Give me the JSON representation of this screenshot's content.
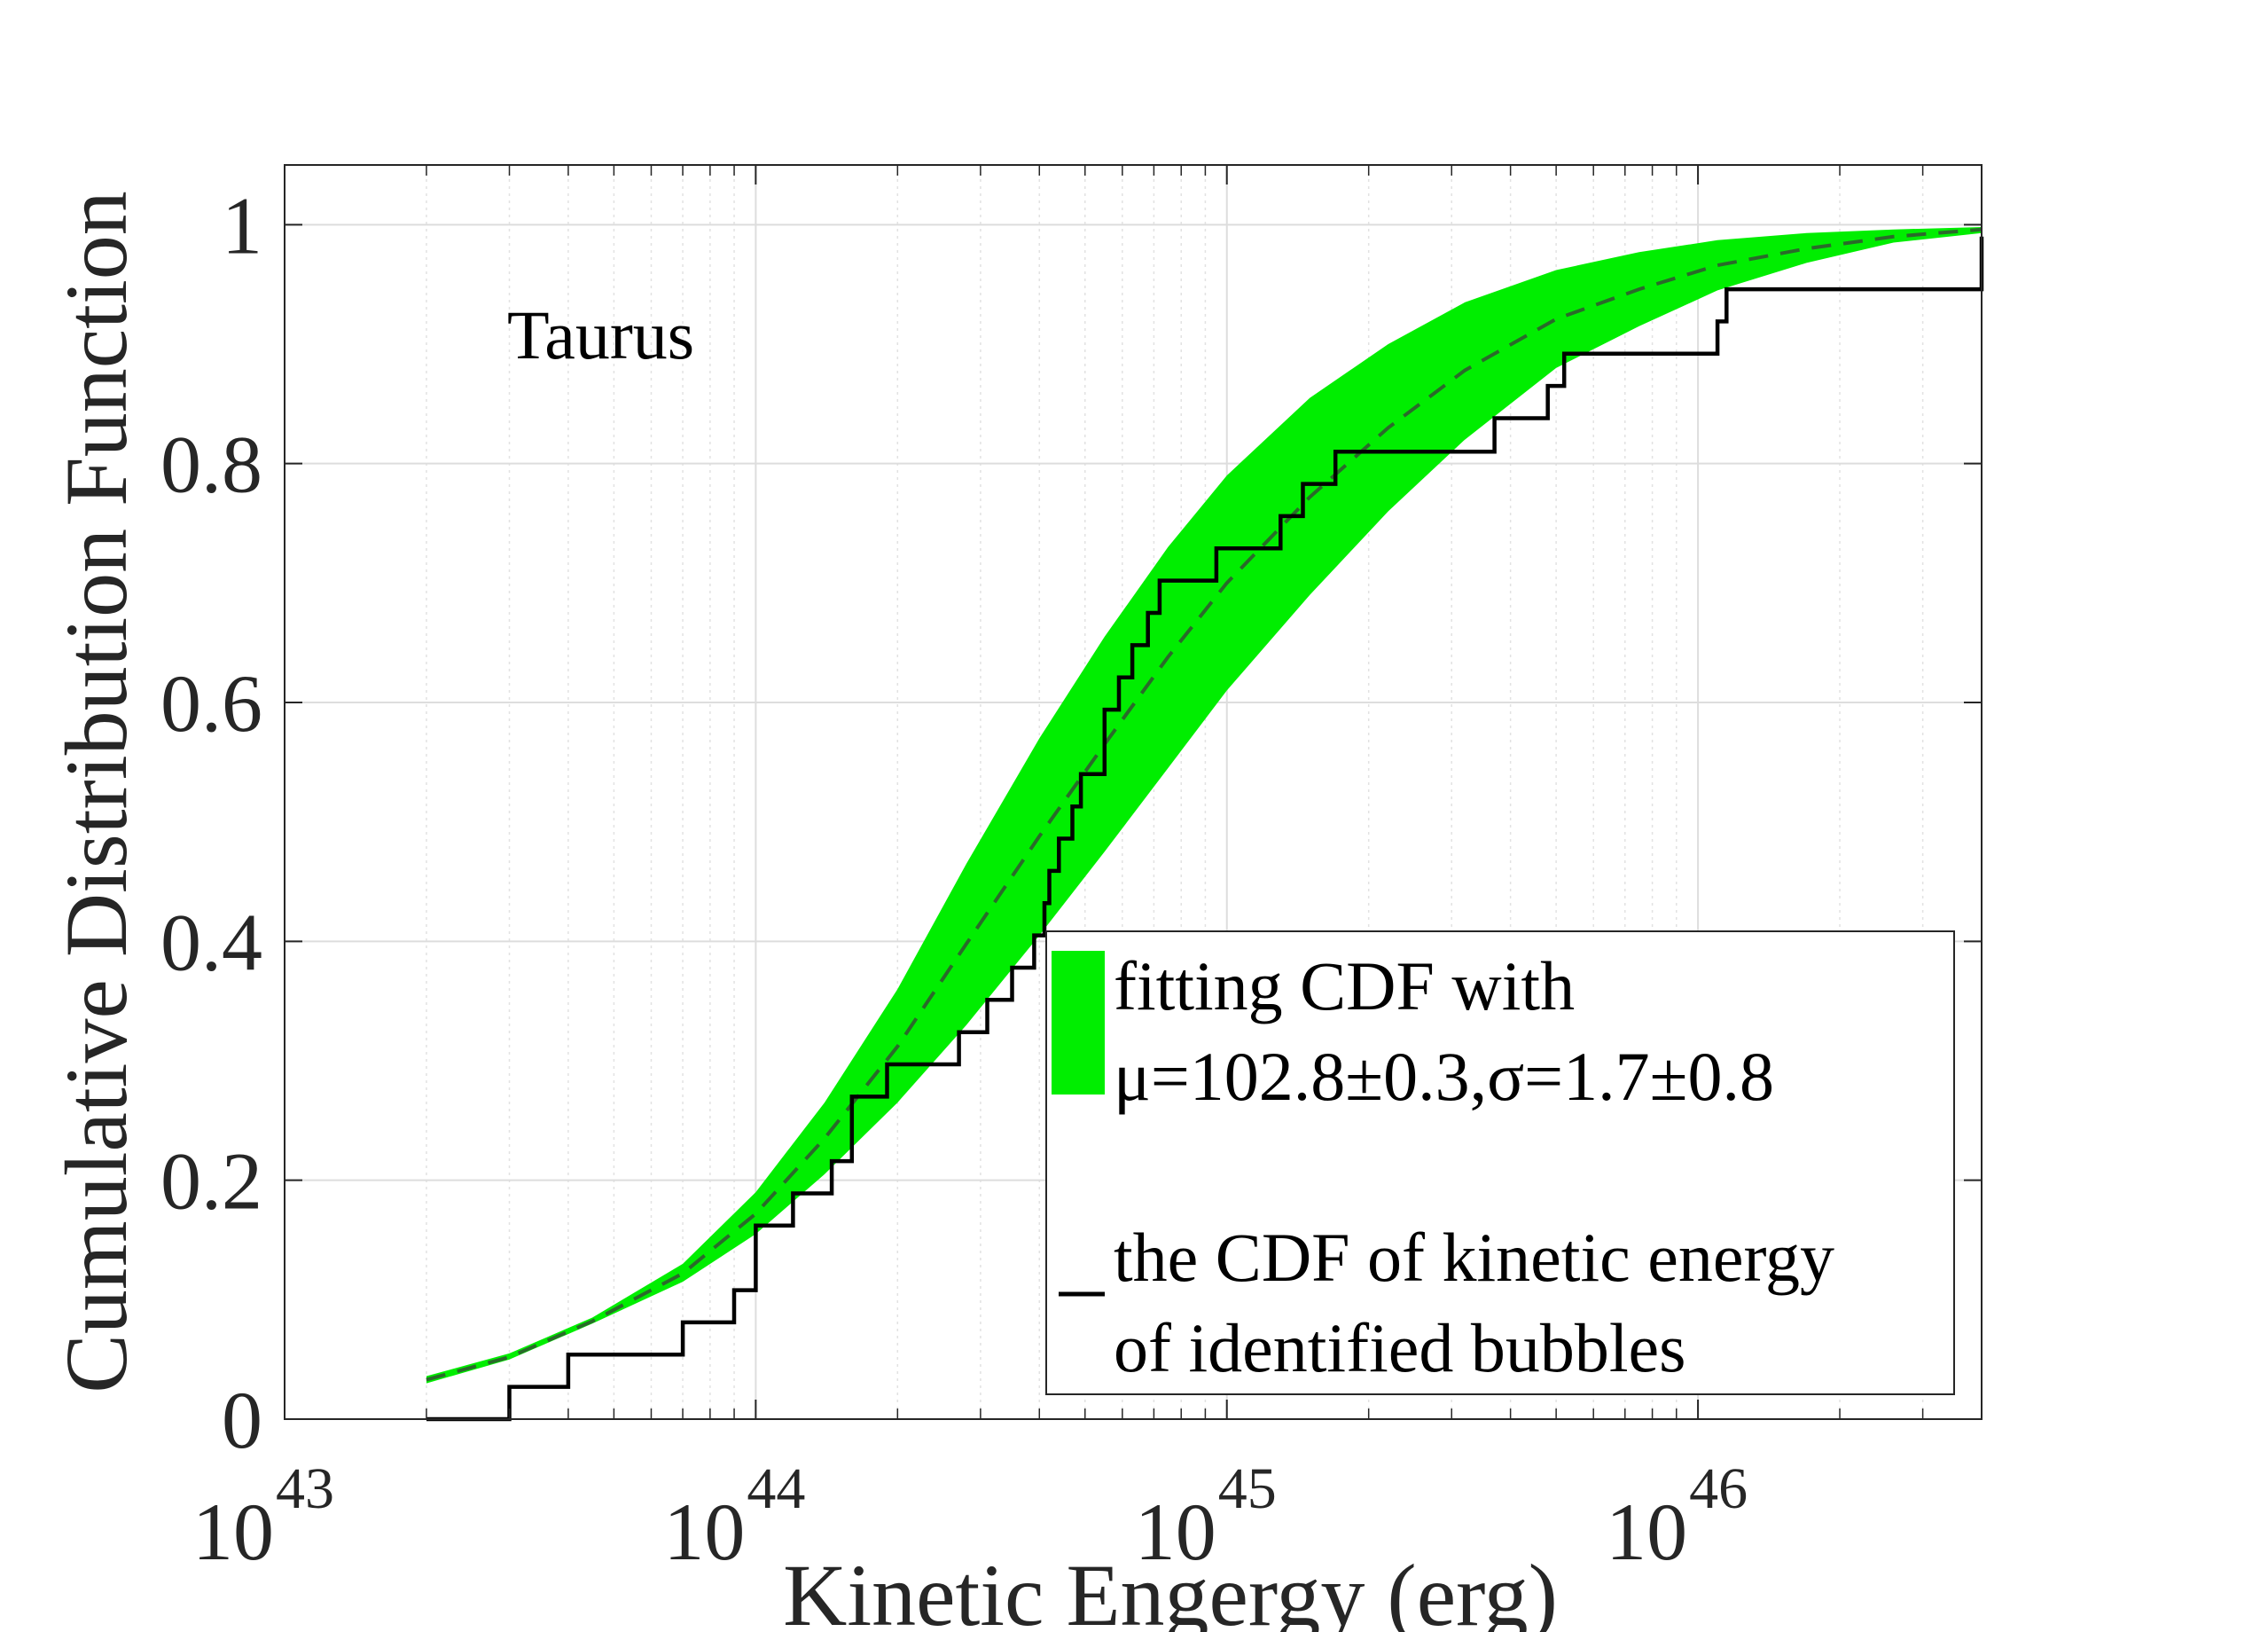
{
  "chart_data": {
    "type": "line",
    "title": "",
    "annotation": "Taurus",
    "xlabel": "Kinetic Engergy (erg)",
    "ylabel": "Cumulative Distribution Function",
    "xscale": "log",
    "xlim": [
      1e+43,
      4e+46
    ],
    "ylim": [
      0,
      1.05
    ],
    "xticks": [
      {
        "value": 1e+43,
        "base": "10",
        "exp": "43"
      },
      {
        "value": 1e+44,
        "base": "10",
        "exp": "44"
      },
      {
        "value": 1e+45,
        "base": "10",
        "exp": "45"
      },
      {
        "value": 1e+46,
        "base": "10",
        "exp": "46"
      }
    ],
    "yticks": [
      {
        "value": 0,
        "label": "0"
      },
      {
        "value": 0.2,
        "label": "0.2"
      },
      {
        "value": 0.4,
        "label": "0.4"
      },
      {
        "value": 0.6,
        "label": "0.6"
      },
      {
        "value": 0.8,
        "label": "0.8"
      },
      {
        "value": 1.0,
        "label": "1"
      }
    ],
    "grid": true,
    "legend_position": "bottom-right",
    "legend": [
      {
        "label_line1": "fitting CDF with",
        "label_line2": "μ=102.8±0.3,σ=1.7±0.8"
      },
      {
        "label_line1": "the CDF of kinetic energy",
        "label_line2": "of identified bubbles"
      }
    ],
    "series": [
      {
        "name": "fitting CDF band",
        "kind": "band",
        "color": "#00ee00",
        "x": [
          2e+43,
          3e+43,
          4.5e+43,
          7e+43,
          1e+44,
          1.4e+44,
          2e+44,
          2.8e+44,
          4e+44,
          5.5e+44,
          7.5e+44,
          1e+45,
          1.5e+45,
          2.2e+45,
          3.2e+45,
          5e+45,
          7.5e+45,
          1.1e+46,
          1.7e+46,
          2.6e+46,
          4e+46
        ],
        "lower": [
          0.03,
          0.05,
          0.08,
          0.115,
          0.155,
          0.205,
          0.265,
          0.33,
          0.405,
          0.475,
          0.545,
          0.61,
          0.69,
          0.76,
          0.82,
          0.88,
          0.915,
          0.945,
          0.968,
          0.985,
          0.993
        ],
        "upper": [
          0.036,
          0.055,
          0.085,
          0.13,
          0.19,
          0.265,
          0.36,
          0.465,
          0.57,
          0.655,
          0.73,
          0.79,
          0.855,
          0.9,
          0.935,
          0.962,
          0.977,
          0.987,
          0.993,
          0.996,
          0.998
        ]
      },
      {
        "name": "fitted CDF median",
        "kind": "dashed",
        "color": "#2a6a2a",
        "x": [
          2e+43,
          3e+43,
          4.5e+43,
          7e+43,
          1e+44,
          1.4e+44,
          2e+44,
          2.8e+44,
          4e+44,
          5.5e+44,
          7.5e+44,
          1e+45,
          1.5e+45,
          2.2e+45,
          3.2e+45,
          5e+45,
          7.5e+45,
          1.1e+46,
          1.7e+46,
          2.6e+46,
          4e+46
        ],
        "y": [
          0.033,
          0.052,
          0.082,
          0.122,
          0.172,
          0.235,
          0.312,
          0.398,
          0.488,
          0.565,
          0.638,
          0.7,
          0.772,
          0.83,
          0.878,
          0.921,
          0.946,
          0.966,
          0.98,
          0.99,
          0.996
        ]
      },
      {
        "name": "empirical CDF",
        "kind": "step",
        "color": "#000000",
        "x": [
          2e+43,
          3e+43,
          4e+43,
          7e+43,
          9e+43,
          1e+44,
          1.2e+44,
          1.45e+44,
          1.6e+44,
          1.9e+44,
          2.7e+44,
          3.1e+44,
          3.5e+44,
          3.9e+44,
          4.1e+44,
          4.2e+44,
          4.4e+44,
          4.7e+44,
          4.9e+44,
          5.5e+44,
          5.9e+44,
          6.3e+44,
          6.8e+44,
          7.2e+44,
          9e+44,
          9.5e+44,
          1.3e+45,
          1.45e+45,
          1.7e+45,
          3.7e+45,
          4.8e+45,
          5.2e+45,
          1.1e+46,
          1.15e+46,
          4e+46
        ],
        "y": [
          0.0,
          0.027,
          0.054,
          0.081,
          0.108,
          0.162,
          0.189,
          0.216,
          0.27,
          0.297,
          0.324,
          0.351,
          0.378,
          0.405,
          0.432,
          0.459,
          0.486,
          0.513,
          0.54,
          0.594,
          0.621,
          0.648,
          0.675,
          0.702,
          0.702,
          0.729,
          0.756,
          0.783,
          0.81,
          0.838,
          0.865,
          0.892,
          0.919,
          0.946,
          0.973
        ]
      }
    ]
  }
}
